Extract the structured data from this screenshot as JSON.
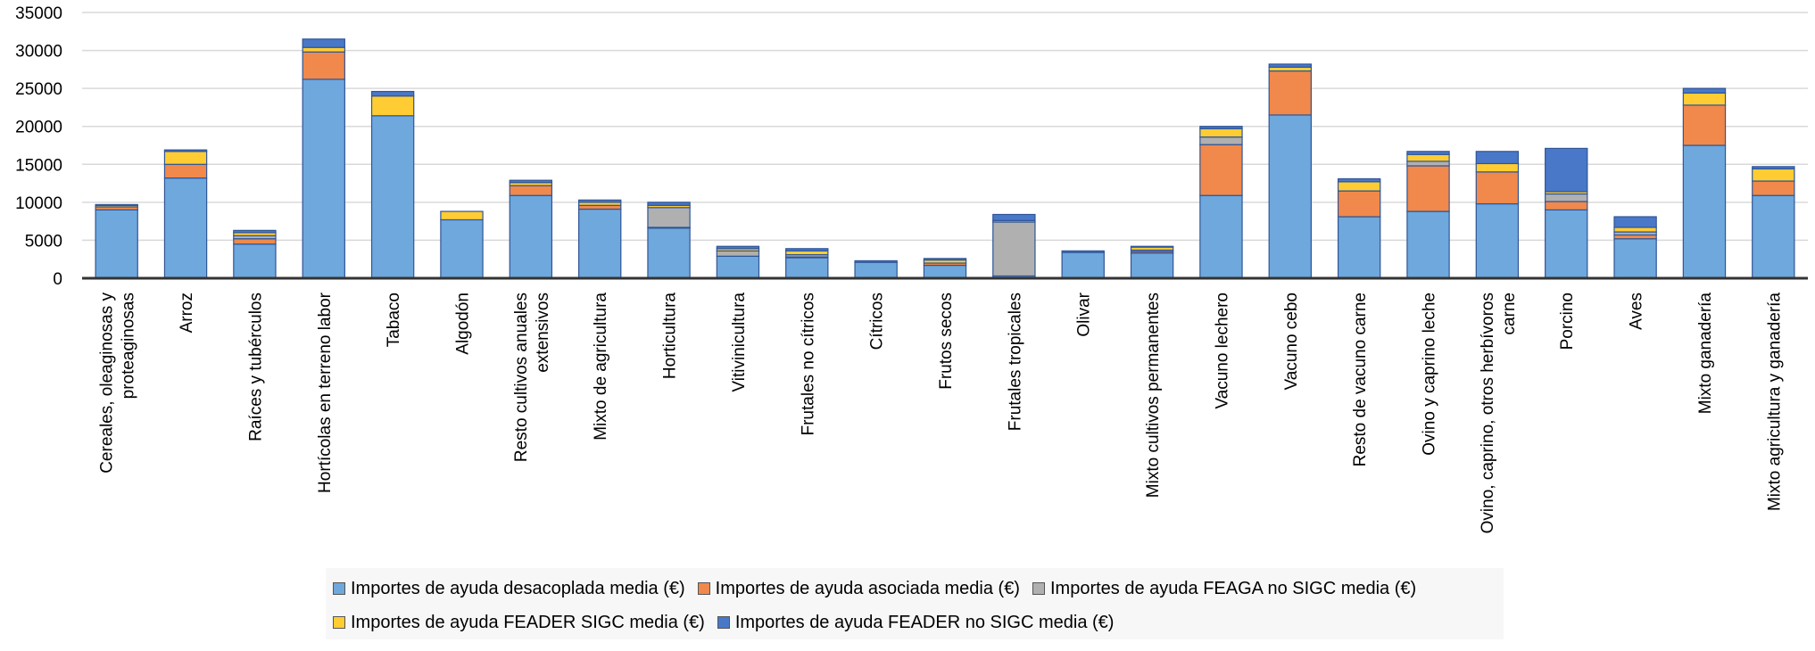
{
  "chart_data": {
    "type": "bar",
    "stacked": true,
    "title": "",
    "xlabel": "",
    "ylabel": "",
    "ylim": [
      0,
      35000
    ],
    "yticks": [
      0,
      5000,
      10000,
      15000,
      20000,
      25000,
      30000,
      35000
    ],
    "grid": "horizontal",
    "legend_position": "bottom",
    "categories": [
      [
        "Cereales, oleaginosas y",
        "proteaginosas"
      ],
      [
        "Arroz"
      ],
      [
        "Raíces y tubérculos"
      ],
      [
        "Hortícolas en terreno labor"
      ],
      [
        "Tabaco"
      ],
      [
        "Algodón"
      ],
      [
        "Resto cultivos anuales",
        "extensivos"
      ],
      [
        "Mixto de agricultura"
      ],
      [
        "Horticultura"
      ],
      [
        "Vitivinicultura"
      ],
      [
        "Frutales no cítricos"
      ],
      [
        "Cítricos"
      ],
      [
        "Frutos secos"
      ],
      [
        "Frutales tropicales"
      ],
      [
        "Olivar"
      ],
      [
        "Mixto cultivos permanentes"
      ],
      [
        "Vacuno lechero"
      ],
      [
        "Vacuno cebo"
      ],
      [
        "Resto de vacuno carne"
      ],
      [
        "Ovino y caprino leche"
      ],
      [
        "Ovino, caprino, otros herbívoros",
        "carne"
      ],
      [
        "Porcino"
      ],
      [
        "Aves"
      ],
      [
        "Mixto ganadería"
      ],
      [
        "Mixto agricultura y ganadería"
      ]
    ],
    "series": [
      {
        "name": "Importes de ayuda desacoplada media (€)",
        "color": "#6fa8dc",
        "values": [
          9000,
          13200,
          4500,
          26200,
          21400,
          7700,
          10900,
          9100,
          6600,
          2900,
          2700,
          2100,
          1700,
          300,
          3400,
          3300,
          10900,
          21500,
          8100,
          8800,
          9800,
          9000,
          5200,
          17500,
          10900
        ]
      },
      {
        "name": "Importes de ayuda asociada media (€)",
        "color": "#f0894b",
        "values": [
          400,
          1800,
          700,
          3600,
          0,
          0,
          1300,
          500,
          100,
          0,
          100,
          0,
          300,
          0,
          0,
          200,
          6700,
          5800,
          3400,
          6000,
          4200,
          1100,
          500,
          5300,
          1900
        ]
      },
      {
        "name": "Importes de ayuda FEAGA no SIGC media (€)",
        "color": "#b0b0b0",
        "values": [
          0,
          0,
          400,
          0,
          0,
          0,
          0,
          0,
          2600,
          700,
          300,
          0,
          0,
          7100,
          0,
          200,
          1000,
          0,
          0,
          600,
          0,
          1000,
          400,
          0,
          0
        ]
      },
      {
        "name": "Importes de ayuda FEADER SIGC media (€)",
        "color": "#ffcd33",
        "values": [
          200,
          1700,
          400,
          600,
          2600,
          1100,
          400,
          400,
          300,
          300,
          500,
          0,
          400,
          200,
          0,
          400,
          1100,
          500,
          1200,
          900,
          1100,
          300,
          600,
          1600,
          1600
        ]
      },
      {
        "name": "Importes de ayuda FEADER no SIGC media (€)",
        "color": "#4a78c8",
        "values": [
          100,
          200,
          300,
          1100,
          600,
          0,
          300,
          300,
          400,
          300,
          300,
          200,
          200,
          800,
          200,
          100,
          300,
          400,
          400,
          400,
          1600,
          5700,
          1400,
          600,
          300
        ]
      }
    ]
  }
}
